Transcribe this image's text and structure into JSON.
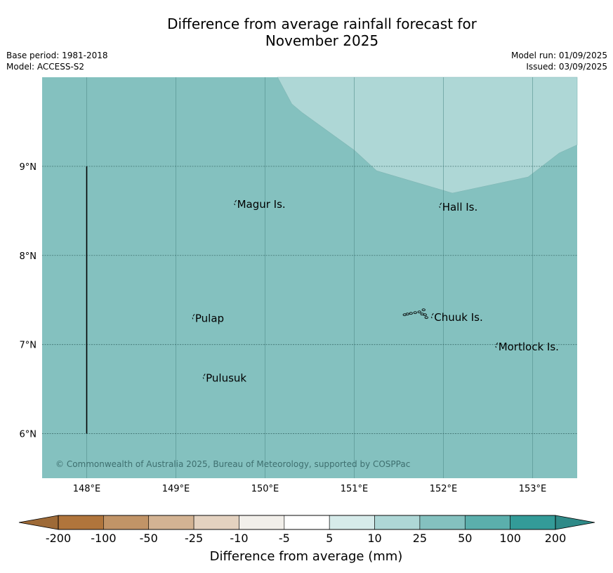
{
  "title_line1": "Difference from average rainfall forecast for",
  "title_line2": "November 2025",
  "meta_left": [
    "Base period: 1981-2018",
    "Model: ACCESS-S2"
  ],
  "meta_right": [
    "Model run: 01/09/2025",
    "Issued: 03/09/2025"
  ],
  "map": {
    "lon_range": [
      147.5,
      153.5
    ],
    "lat_range": [
      5.5,
      10.0
    ],
    "lon_ticks": [
      148,
      149,
      150,
      151,
      152,
      153
    ],
    "lon_tick_labels": [
      "148°E",
      "149°E",
      "150°E",
      "151°E",
      "152°E",
      "153°E"
    ],
    "lat_ticks": [
      9,
      8,
      7,
      6
    ],
    "lat_tick_labels": [
      "9°N",
      "8°N",
      "7°N",
      "6°N"
    ],
    "base_fill": "#84c1bf",
    "lighter_region_fill": "#aed7d6",
    "lighter_region_category": "10 to 25",
    "base_category": "25 to 50",
    "lighter_region_boundary": [
      [
        150.14,
        10.0
      ],
      [
        150.3,
        9.7
      ],
      [
        150.42,
        9.6
      ],
      [
        151.0,
        9.18
      ],
      [
        151.25,
        8.95
      ],
      [
        152.1,
        8.7
      ],
      [
        152.95,
        8.88
      ],
      [
        153.3,
        9.15
      ],
      [
        153.5,
        9.24
      ],
      [
        153.5,
        10.0
      ]
    ],
    "places": [
      {
        "name": "Magur Is.",
        "lon": 149.67,
        "lat": 8.55
      },
      {
        "name": "Hall Is.",
        "lon": 151.97,
        "lat": 8.52
      },
      {
        "name": "Pulap",
        "lon": 149.2,
        "lat": 7.27
      },
      {
        "name": "Chuuk Is.",
        "lon": 151.88,
        "lat": 7.28
      },
      {
        "name": "Mortlock Is.",
        "lon": 152.6,
        "lat": 6.95
      },
      {
        "name": "Pulusuk",
        "lon": 149.32,
        "lat": 6.6
      }
    ],
    "boundary_line": {
      "lon": 148.0,
      "lat_from": 6.0,
      "lat_to": 9.0
    },
    "copyright": "© Commonwealth of Australia 2025, Bureau of Meteorology, supported by COSPPac"
  },
  "colorbar": {
    "tick_labels": [
      "-200",
      "-100",
      "-50",
      "-25",
      "-10",
      "-5",
      "5",
      "10",
      "25",
      "50",
      "100",
      "200"
    ],
    "colors": [
      "#b0753c",
      "#c19467",
      "#d3b393",
      "#e4d2c0",
      "#f2efea",
      "#ffffff",
      "#d6ebea",
      "#aed7d6",
      "#84c1bf",
      "#5bafac",
      "#339b98"
    ],
    "low_extend_color": "#9e6a37",
    "high_extend_color": "#2f8a88",
    "title": "Difference from average (mm)"
  }
}
